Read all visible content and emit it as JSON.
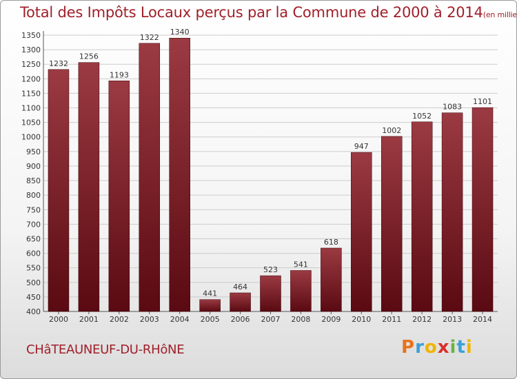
{
  "title": {
    "main": "Total des Impôts Locaux perçus par la Commune de 2000 à 2014",
    "unit": "(en milliers d'€)"
  },
  "commune_name": "CHâTEAUNEUF-DU-RHôNE",
  "logo": {
    "text": "Proxiti",
    "letters": [
      {
        "ch": "P",
        "color": "#e8731a"
      },
      {
        "ch": "r",
        "color": "#3aa0d8"
      },
      {
        "ch": "o",
        "color": "#f0b400"
      },
      {
        "ch": "x",
        "color": "#d8302a"
      },
      {
        "ch": "i",
        "color": "#6cb33f"
      },
      {
        "ch": "t",
        "color": "#3aa0d8"
      },
      {
        "ch": "i",
        "color": "#f0b400"
      }
    ]
  },
  "colors": {
    "bar_top": "#9b3a42",
    "bar_bottom": "#5a0a12",
    "title": "#a0202a",
    "grid": "#cccccc"
  },
  "chart_data": {
    "type": "bar",
    "categories": [
      "2000",
      "2001",
      "2002",
      "2003",
      "2004",
      "2005",
      "2006",
      "2007",
      "2008",
      "2009",
      "2010",
      "2011",
      "2012",
      "2013",
      "2014"
    ],
    "values": [
      1232,
      1256,
      1193,
      1322,
      1340,
      441,
      464,
      523,
      541,
      618,
      947,
      1002,
      1052,
      1083,
      1101
    ],
    "ylim": [
      400,
      1350
    ],
    "ytick_step": 50,
    "grid": true,
    "xlabel": "",
    "ylabel": ""
  }
}
